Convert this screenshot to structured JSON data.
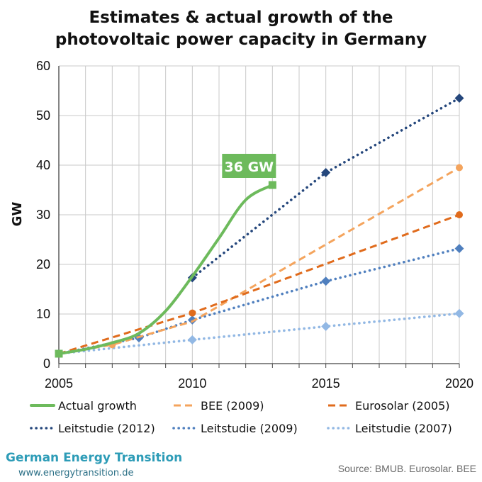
{
  "chart_data": {
    "type": "line",
    "title": [
      "Estimates & actual growth of the",
      "photovoltaic power capacity in Germany"
    ],
    "xlabel": "",
    "ylabel": "GW",
    "xlim": [
      2005,
      2020
    ],
    "ylim": [
      0,
      60
    ],
    "x_ticks": [
      "2005",
      "2010",
      "2015",
      "2020"
    ],
    "y_ticks": [
      "0",
      "10",
      "20",
      "30",
      "40",
      "50",
      "60"
    ],
    "grid": "vertical yearly and horizontal every 10 GW",
    "legend_position": "bottom",
    "series": [
      {
        "name": "Actual growth",
        "color": "#6dba5c",
        "style": "solid",
        "marker": "square",
        "points": [
          [
            2005,
            2.0
          ],
          [
            2006,
            2.9
          ],
          [
            2007,
            4.2
          ],
          [
            2008,
            6.1
          ],
          [
            2009,
            10.6
          ],
          [
            2010,
            17.6
          ],
          [
            2011,
            25.3
          ],
          [
            2012,
            33.0
          ],
          [
            2013,
            36.0
          ]
        ],
        "marked": [
          [
            2005,
            2.0
          ],
          [
            2013,
            36.0
          ]
        ]
      },
      {
        "name": "BEE (2009)",
        "color": "#f4a45d",
        "style": "dash",
        "marker": "circle",
        "points": [
          [
            2005,
            2.0
          ],
          [
            2007,
            3.8
          ],
          [
            2010,
            8.5
          ],
          [
            2020,
            39.5
          ]
        ],
        "marked": [
          [
            2007,
            3.8
          ],
          [
            2020,
            39.5
          ]
        ]
      },
      {
        "name": "Eurosolar (2005)",
        "color": "#e06b1c",
        "style": "dash",
        "marker": "circle",
        "points": [
          [
            2005,
            2.0
          ],
          [
            2010,
            10.2
          ],
          [
            2020,
            30.0
          ]
        ],
        "marked": [
          [
            2010,
            10.2
          ],
          [
            2020,
            30.0
          ]
        ]
      },
      {
        "name": "Leitstudie (2012)",
        "color": "#25477c",
        "style": "dot",
        "marker": "diamond",
        "points": [
          [
            2010,
            17.3
          ],
          [
            2015,
            38.5
          ],
          [
            2020,
            53.5
          ]
        ],
        "marked": [
          [
            2010,
            17.3
          ],
          [
            2015,
            38.5
          ],
          [
            2020,
            53.5
          ]
        ]
      },
      {
        "name": "Leitstudie (2009)",
        "color": "#4f7fbe",
        "style": "dot",
        "marker": "diamond",
        "points": [
          [
            2005,
            2.0
          ],
          [
            2008,
            5.2
          ],
          [
            2010,
            8.8
          ],
          [
            2015,
            16.6
          ],
          [
            2020,
            23.2
          ]
        ],
        "marked": [
          [
            2008,
            5.2
          ],
          [
            2010,
            8.8
          ],
          [
            2015,
            16.6
          ],
          [
            2020,
            23.2
          ]
        ]
      },
      {
        "name": "Leitstudie (2007)",
        "color": "#92b8e4",
        "style": "dot",
        "marker": "diamond",
        "points": [
          [
            2005,
            2.0
          ],
          [
            2010,
            4.8
          ],
          [
            2015,
            7.5
          ],
          [
            2020,
            10.1
          ]
        ],
        "marked": [
          [
            2010,
            4.8
          ],
          [
            2015,
            7.5
          ],
          [
            2020,
            10.1
          ]
        ]
      }
    ],
    "annotations": [
      {
        "text": "36 GW",
        "x": 2013,
        "y": 36.0,
        "color": "#6dba5c"
      }
    ]
  },
  "branding": {
    "name": "German Energy Transition",
    "url": "www.energytransition.de"
  },
  "source": "Source: BMUB. Eurosolar. BEE"
}
